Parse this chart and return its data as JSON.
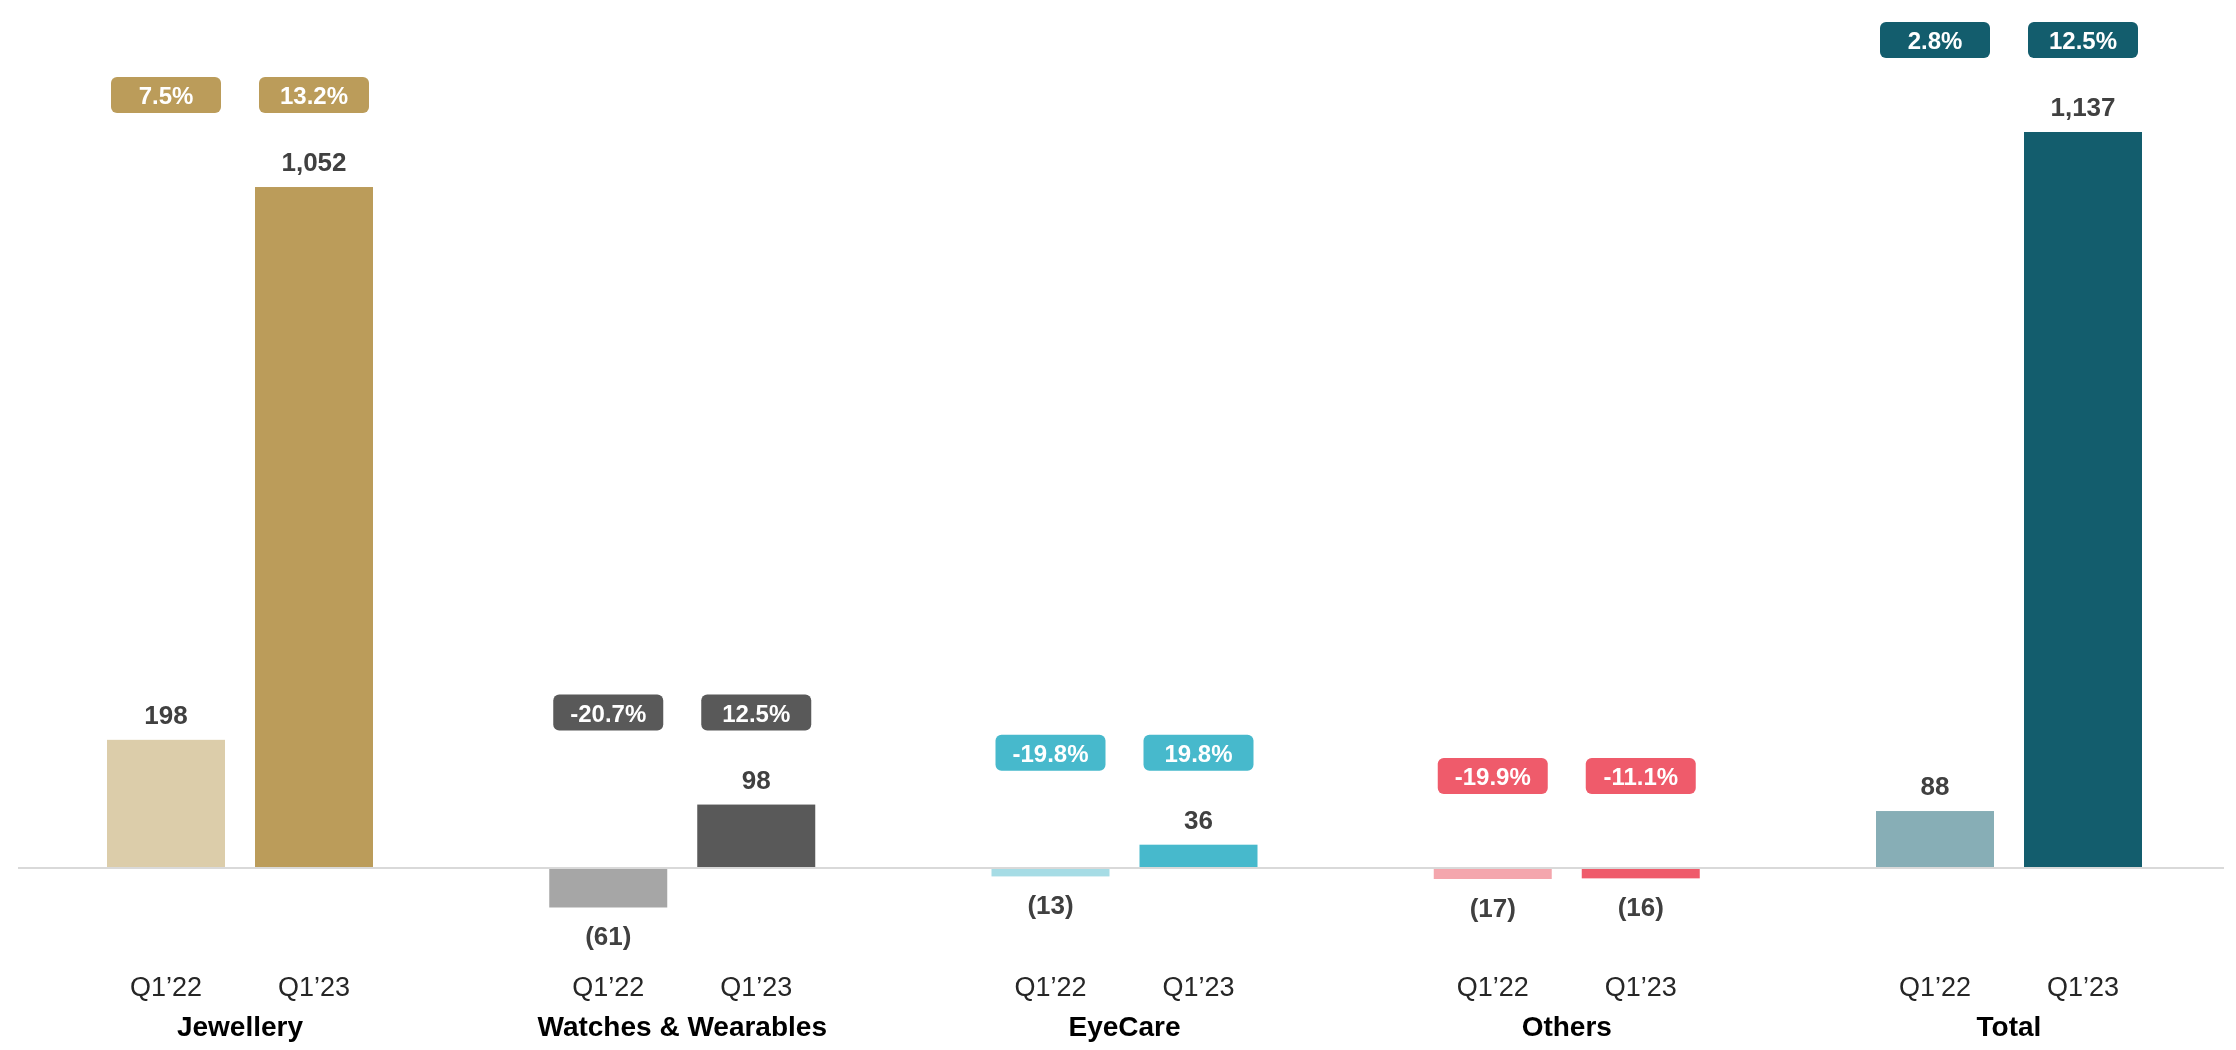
{
  "chart_data": {
    "type": "bar",
    "relative": false,
    "categories": [
      "Q1’22",
      "Q1’23",
      "Q1’22",
      "Q1’23",
      "Q1’22",
      "Q1’23",
      "Q1’22",
      "Q1’23",
      "Q1’22",
      "Q1’23"
    ],
    "values": [
      198,
      1052,
      -61,
      98,
      -13,
      36,
      -17,
      -16,
      88,
      1137
    ],
    "colors": [
      "#dccdaa",
      "#bb9c5a",
      "#a6a6a6",
      "#595959",
      "#a6dce5",
      "#47b9cc",
      "#f4a6ad",
      "#ef5b6b",
      "#87aeb6",
      "#135d6d"
    ],
    "value_labels": [
      "198",
      "1,052",
      "(61)",
      "98",
      "(13)",
      "36",
      "(17)",
      "(16)",
      "88",
      "1,137"
    ],
    "annotations": [
      "Jewellery",
      "Watches & Wearables",
      "EyeCare",
      "Others",
      "Total",
      "7.5%",
      "13.2%",
      "-20.7%",
      "12.5%",
      "-19.8%",
      "19.8%",
      "-19.9%",
      "-11.1%",
      "2.8%",
      "12.5%"
    ]
  }
}
